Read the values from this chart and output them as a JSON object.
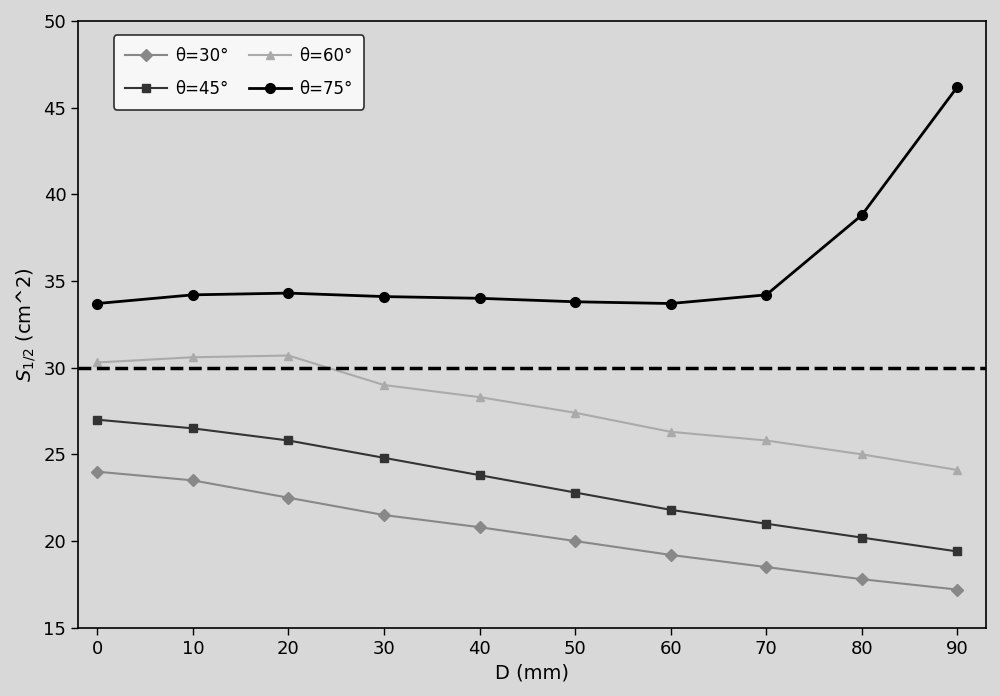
{
  "x": [
    0,
    10,
    20,
    30,
    40,
    50,
    60,
    70,
    80,
    90
  ],
  "theta30": [
    24.0,
    23.5,
    22.5,
    21.5,
    20.8,
    20.0,
    19.2,
    18.5,
    17.8,
    17.2
  ],
  "theta45": [
    27.0,
    26.5,
    25.8,
    24.8,
    23.8,
    22.8,
    21.8,
    21.0,
    20.2,
    19.4
  ],
  "theta60": [
    30.3,
    30.6,
    30.7,
    29.0,
    28.3,
    27.4,
    26.3,
    25.8,
    25.0,
    24.1
  ],
  "theta75": [
    33.7,
    34.2,
    34.3,
    34.1,
    34.0,
    33.8,
    33.7,
    34.2,
    38.8,
    46.2
  ],
  "dashed_y": 30.0,
  "color30": "#888888",
  "color45": "#333333",
  "color60": "#aaaaaa",
  "color75": "#000000",
  "fig_facecolor": "#d8d8d8",
  "axes_facecolor": "#d8d8d8",
  "xlabel": "D (mm)",
  "ylabel": "S_{1/2} (cm^2)",
  "xlim": [
    -2,
    93
  ],
  "ylim": [
    15,
    50
  ],
  "xticks": [
    0,
    10,
    20,
    30,
    40,
    50,
    60,
    70,
    80,
    90
  ],
  "yticks": [
    15,
    20,
    25,
    30,
    35,
    40,
    45,
    50
  ],
  "legend_labels": [
    "θ=30°",
    "θ=45°",
    "θ=60°",
    "θ=75°"
  ]
}
